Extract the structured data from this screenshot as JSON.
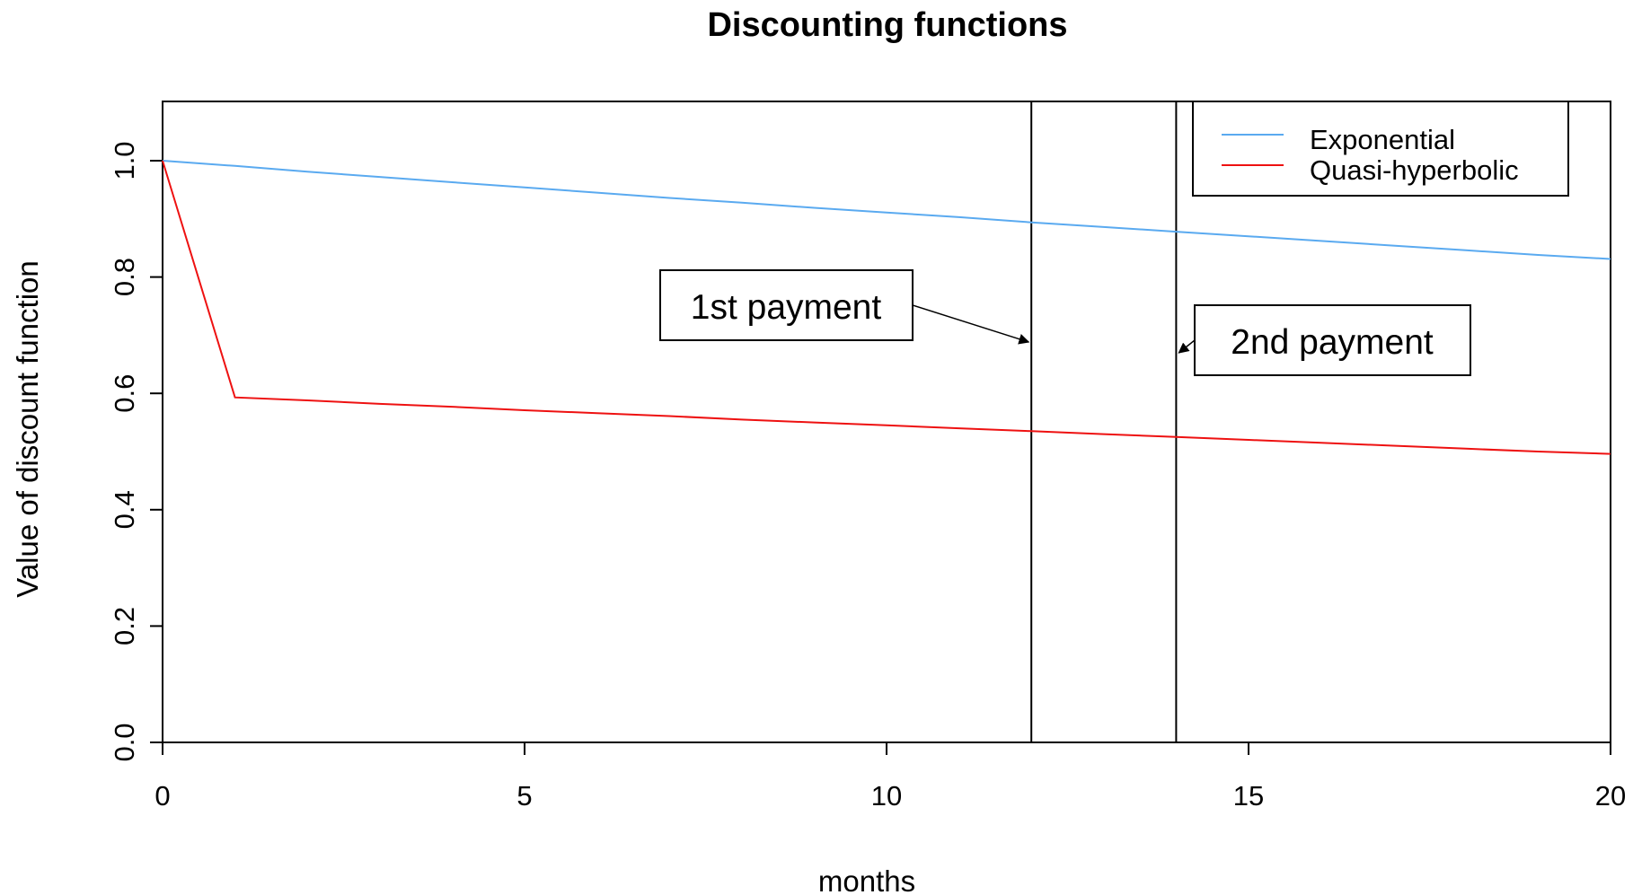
{
  "chart_data": {
    "type": "line",
    "title": "Discounting functions",
    "xlabel": "months",
    "ylabel": "Value of discount function",
    "xlim": [
      0,
      20
    ],
    "ylim": [
      0,
      1.1
    ],
    "x_ticks": [
      0,
      5,
      10,
      15,
      20
    ],
    "y_ticks": [
      0.0,
      0.2,
      0.4,
      0.6,
      0.8,
      1.0
    ],
    "x_tick_labels": [
      "0",
      "5",
      "10",
      "15",
      "20"
    ],
    "y_tick_labels": [
      "0.0",
      "0.2",
      "0.4",
      "0.6",
      "0.8",
      "1.0"
    ],
    "grid": false,
    "legend_position": "top-right",
    "x": [
      0,
      1,
      2,
      3,
      4,
      5,
      6,
      7,
      8,
      9,
      10,
      11,
      12,
      13,
      14,
      15,
      16,
      17,
      18,
      19,
      20
    ],
    "series": [
      {
        "name": "Exponential",
        "color": "#5aaaf0",
        "values": [
          1.0,
          0.991,
          0.981,
          0.972,
          0.963,
          0.954,
          0.945,
          0.936,
          0.928,
          0.919,
          0.911,
          0.903,
          0.894,
          0.886,
          0.878,
          0.87,
          0.862,
          0.854,
          0.846,
          0.838,
          0.831
        ]
      },
      {
        "name": "Quasi-hyperbolic",
        "color": "#ee1111",
        "values": [
          1.0,
          0.593,
          0.588,
          0.582,
          0.577,
          0.571,
          0.566,
          0.561,
          0.555,
          0.55,
          0.545,
          0.54,
          0.535,
          0.53,
          0.525,
          0.52,
          0.515,
          0.51,
          0.505,
          0.5,
          0.496
        ]
      }
    ],
    "vertical_lines": [
      12,
      14
    ],
    "annotations": [
      {
        "text": "1st payment",
        "target_x": 12
      },
      {
        "text": "2nd payment",
        "target_x": 14
      }
    ]
  }
}
